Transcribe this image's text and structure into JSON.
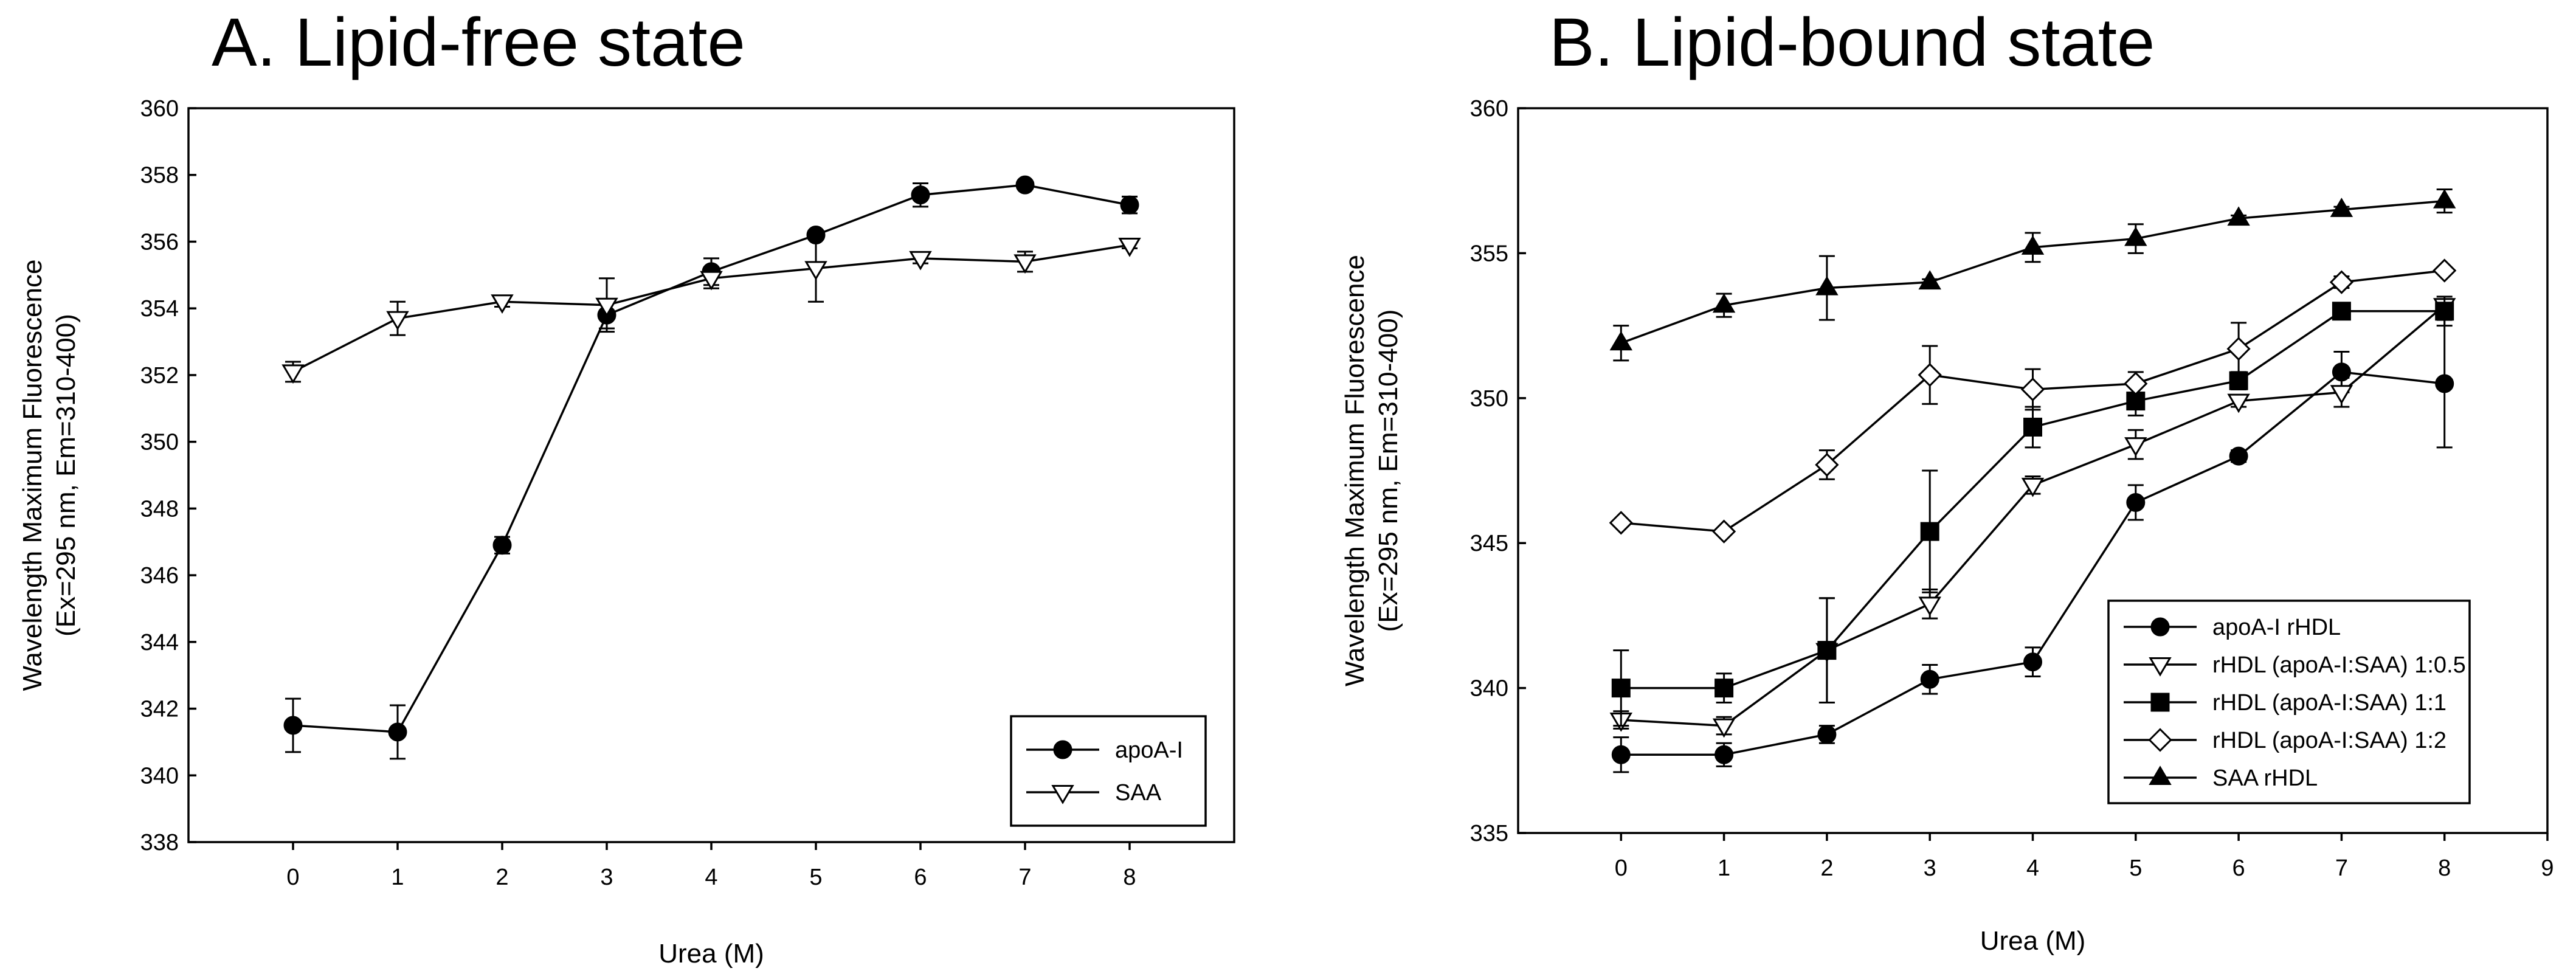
{
  "chart_data": [
    {
      "type": "line",
      "title": "A. Lipid-free state",
      "xlabel": "Urea (M)",
      "ylabel_lines": [
        "Wavelength Maximum Fluorescence",
        "(Ex=295 nm, Em=310-400)"
      ],
      "xlim": [
        -1,
        9
      ],
      "ylim": [
        338,
        360
      ],
      "xticks": [
        0,
        1,
        2,
        3,
        4,
        5,
        6,
        7,
        8
      ],
      "yticks": [
        338,
        340,
        342,
        344,
        346,
        348,
        350,
        352,
        354,
        356,
        358,
        360
      ],
      "legend_position": "bottom-right",
      "series": [
        {
          "name": "apoA-I",
          "marker": "circle-filled",
          "x": [
            0,
            1,
            2,
            3,
            4,
            5,
            6,
            7,
            8
          ],
          "y": [
            341.5,
            341.3,
            346.9,
            353.8,
            355.1,
            356.2,
            357.4,
            357.7,
            357.1
          ],
          "err": [
            0.8,
            0.8,
            0.25,
            0.4,
            0.4,
            0.1,
            0.35,
            0.1,
            0.25
          ]
        },
        {
          "name": "SAA",
          "marker": "triangle-down-open",
          "x": [
            0,
            1,
            2,
            3,
            4,
            5,
            6,
            7,
            8
          ],
          "y": [
            352.1,
            353.7,
            354.2,
            354.1,
            354.9,
            355.2,
            355.5,
            355.4,
            355.9
          ],
          "err": [
            0.3,
            0.5,
            0.15,
            0.8,
            0.3,
            1.0,
            0.15,
            0.3,
            0.1
          ]
        }
      ]
    },
    {
      "type": "line",
      "title": "B. Lipid-bound state",
      "xlabel": "Urea (M)",
      "ylabel_lines": [
        "Wavelength Maximum Fluorescence",
        "(Ex=295 nm, Em=310-400)"
      ],
      "xlim": [
        -1,
        9
      ],
      "ylim": [
        335,
        360
      ],
      "xticks": [
        0,
        1,
        2,
        3,
        4,
        5,
        6,
        7,
        8,
        9
      ],
      "yticks": [
        335,
        340,
        345,
        350,
        355,
        360
      ],
      "legend_position": "bottom-right",
      "series": [
        {
          "name": "apoA-I rHDL",
          "marker": "circle-filled",
          "x": [
            0,
            1,
            2,
            3,
            4,
            5,
            6,
            7,
            8
          ],
          "y": [
            337.7,
            337.7,
            338.4,
            340.3,
            340.9,
            346.4,
            348.0,
            350.9,
            350.5
          ],
          "err": [
            0.6,
            0.4,
            0.3,
            0.5,
            0.5,
            0.6,
            0.2,
            0.7,
            2.2
          ]
        },
        {
          "name": "rHDL (apoA-I:SAA) 1:0.5",
          "marker": "triangle-down-open",
          "x": [
            0,
            1,
            2,
            3,
            4,
            5,
            6,
            7,
            8
          ],
          "y": [
            338.9,
            338.7,
            341.3,
            342.9,
            347.0,
            348.4,
            349.9,
            350.2,
            353.2
          ],
          "err": [
            0.3,
            0.3,
            1.8,
            0.5,
            0.3,
            0.5,
            0.2,
            0.5,
            0.2
          ]
        },
        {
          "name": "rHDL (apoA-I:SAA) 1:1",
          "marker": "square-filled",
          "x": [
            0,
            1,
            2,
            3,
            4,
            5,
            6,
            7,
            8
          ],
          "y": [
            340.0,
            340.0,
            341.3,
            345.4,
            349.0,
            349.9,
            350.6,
            353.0,
            353.0
          ],
          "err": [
            1.3,
            0.5,
            1.8,
            2.1,
            0.7,
            0.5,
            0.3,
            0.2,
            0.5
          ]
        },
        {
          "name": "rHDL (apoA-I:SAA) 1:2",
          "marker": "diamond-open",
          "x": [
            0,
            1,
            2,
            3,
            4,
            5,
            6,
            7,
            8
          ],
          "y": [
            345.7,
            345.4,
            347.7,
            350.8,
            350.3,
            350.5,
            351.7,
            354.0,
            354.4
          ],
          "err": [
            0.1,
            0.1,
            0.5,
            1.0,
            0.7,
            0.4,
            0.9,
            0.2,
            0.1
          ]
        },
        {
          "name": "SAA rHDL",
          "marker": "triangle-up-filled",
          "x": [
            0,
            1,
            2,
            3,
            4,
            5,
            6,
            7,
            8
          ],
          "y": [
            351.9,
            353.2,
            353.8,
            354.0,
            355.2,
            355.5,
            356.2,
            356.5,
            356.8
          ],
          "err": [
            0.6,
            0.4,
            1.1,
            0.1,
            0.5,
            0.5,
            0.1,
            0.1,
            0.4
          ]
        }
      ]
    }
  ]
}
